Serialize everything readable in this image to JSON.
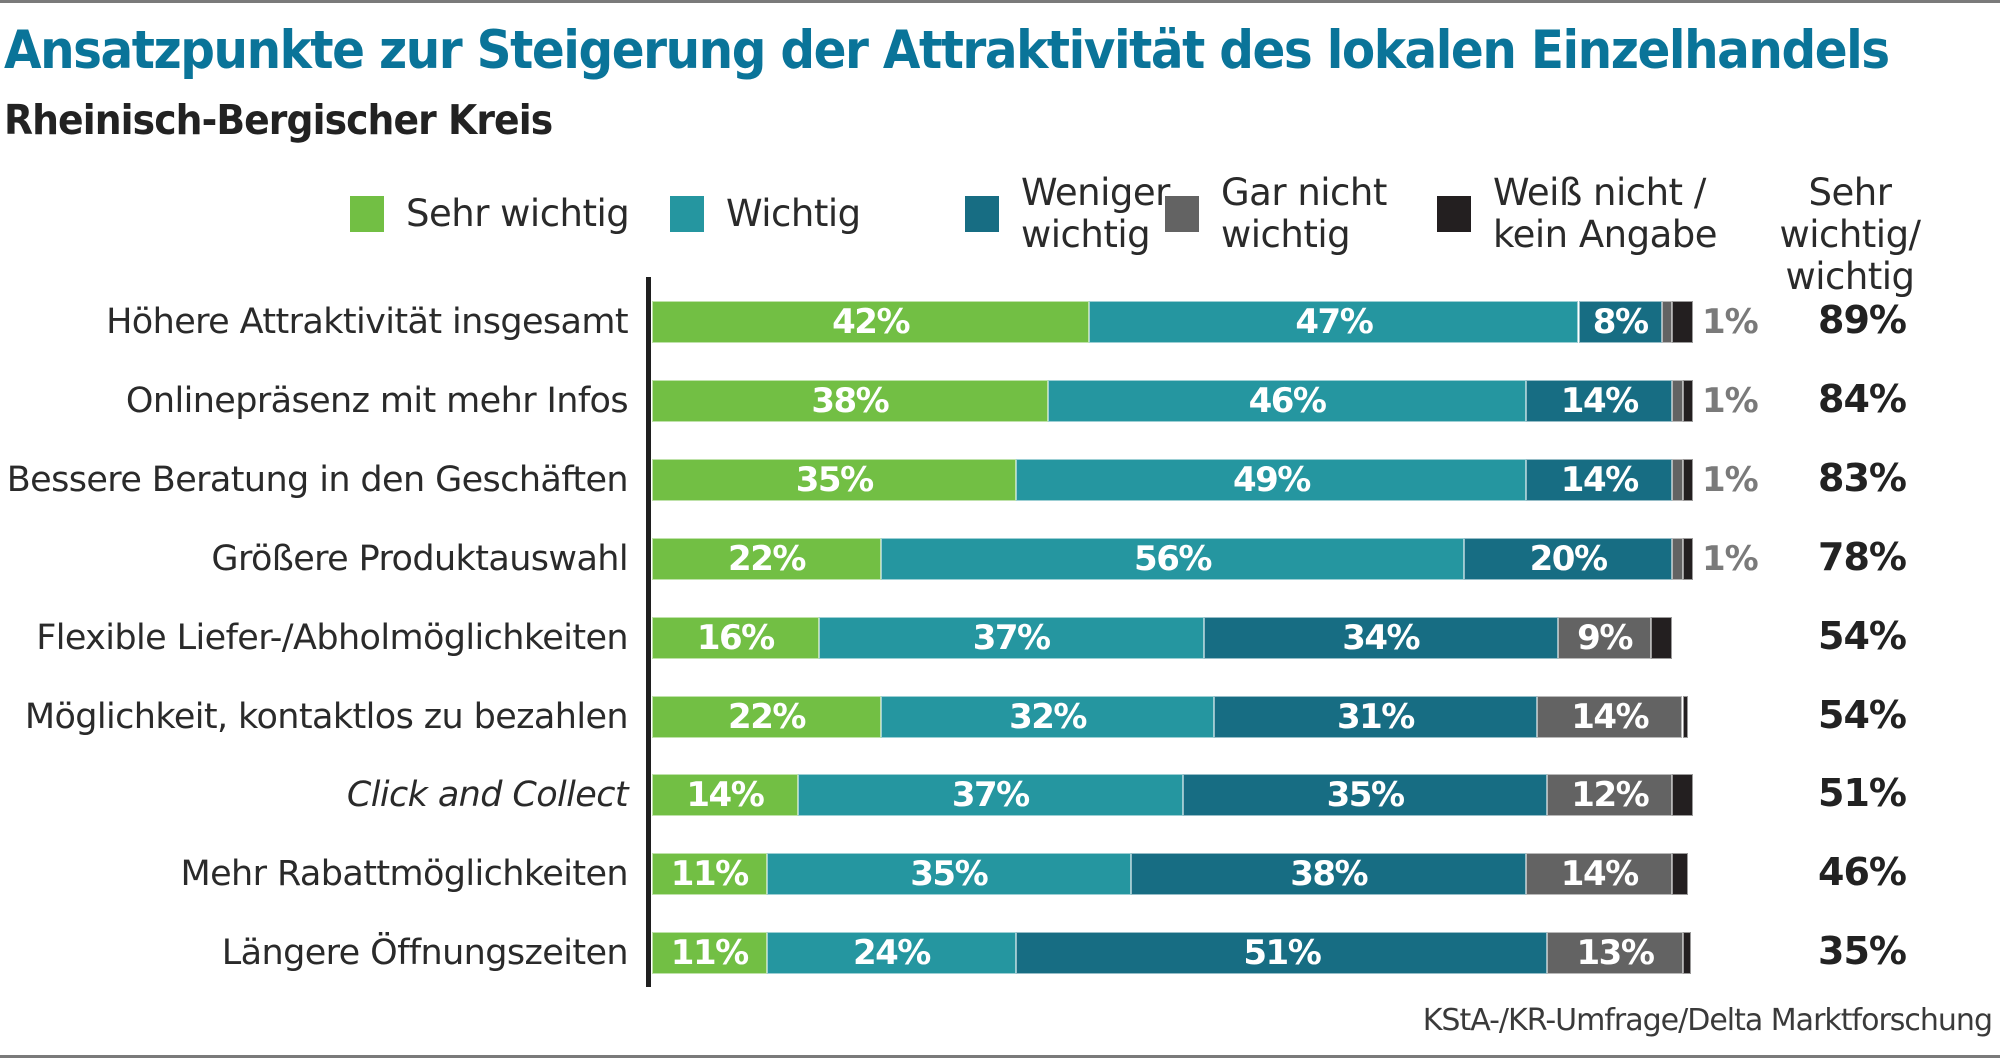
{
  "header": {
    "title": "Ansatzpunkte zur Steigerung der Attraktivität des lokalen Einzelhandels",
    "subtitle": "Rheinisch-Bergischer Kreis"
  },
  "legend": {
    "items": [
      {
        "label": "Sehr wichtig",
        "color": "#72bf44"
      },
      {
        "label": "Wichtig",
        "color": "#2596a0"
      },
      {
        "label": "Weniger\nwichtig",
        "color": "#176d83"
      },
      {
        "label": "Gar nicht\nwichtig",
        "color": "#636363"
      },
      {
        "label": "Weiß nicht /\nkein Angabe",
        "color": "#231f20"
      }
    ],
    "total_header": "Sehr wichtig/\nwichtig"
  },
  "source": "KStA-/KR-Umfrage/Delta Marktforschung",
  "chart_data": {
    "type": "bar",
    "orientation": "horizontal",
    "stacked": true,
    "title": "Ansatzpunkte zur Steigerung der Attraktivität des lokalen Einzelhandels",
    "subtitle": "Rheinisch-Bergischer Kreis",
    "xlabel": "",
    "ylabel": "",
    "xlim": [
      0,
      100
    ],
    "unit": "%",
    "grid": false,
    "legend_position": "top",
    "categories": [
      "Höhere Attraktivität insgesamt",
      "Onlinepräsenz mit mehr Infos",
      "Bessere Beratung in den Geschäften",
      "Größere Produktauswahl",
      "Flexible Liefer-/Abholmöglichkeiten",
      "Möglichkeit, kontaktlos zu bezahlen",
      "Click and Collect",
      "Mehr Rabattmöglichkeiten",
      "Längere Öffnungszeiten"
    ],
    "italic_categories": [
      "Click and Collect"
    ],
    "series": [
      {
        "name": "Sehr wichtig",
        "color": "#72bf44",
        "values": [
          42,
          38,
          35,
          22,
          16,
          22,
          14,
          11,
          11
        ],
        "labels": [
          "42%",
          "38%",
          "35%",
          "22%",
          "16%",
          "22%",
          "14%",
          "11%",
          "11%"
        ]
      },
      {
        "name": "Wichtig",
        "color": "#2596a0",
        "values": [
          47,
          46,
          49,
          56,
          37,
          32,
          37,
          35,
          24
        ],
        "labels": [
          "47%",
          "46%",
          "49%",
          "56%",
          "37%",
          "32%",
          "37%",
          "35%",
          "24%"
        ]
      },
      {
        "name": "Weniger wichtig",
        "color": "#176d83",
        "values": [
          8,
          14,
          14,
          20,
          34,
          31,
          35,
          38,
          51
        ],
        "labels": [
          "8%",
          "14%",
          "14%",
          "20%",
          "34%",
          "31%",
          "35%",
          "38%",
          "51%"
        ]
      },
      {
        "name": "Gar nicht wichtig",
        "color": "#636363",
        "values": [
          1,
          1,
          1,
          1,
          9,
          14,
          12,
          14,
          13
        ],
        "labels": [
          "",
          "",
          "",
          "",
          "9%",
          "14%",
          "12%",
          "14%",
          "13%"
        ]
      },
      {
        "name": "Weiß nicht / kein Angabe",
        "color": "#231f20",
        "values": [
          2,
          1,
          1,
          1,
          2,
          0.5,
          2,
          1.5,
          0.8
        ],
        "labels": [
          "",
          "",
          "",
          "",
          "",
          "",
          "",
          "",
          ""
        ]
      }
    ],
    "external_labels": [
      "1%",
      "1%",
      "1%",
      "1%",
      "",
      "",
      "",
      "",
      ""
    ],
    "totals_header": "Sehr wichtig/ wichtig",
    "totals": [
      "89%",
      "84%",
      "83%",
      "78%",
      "54%",
      "54%",
      "51%",
      "46%",
      "35%"
    ]
  }
}
